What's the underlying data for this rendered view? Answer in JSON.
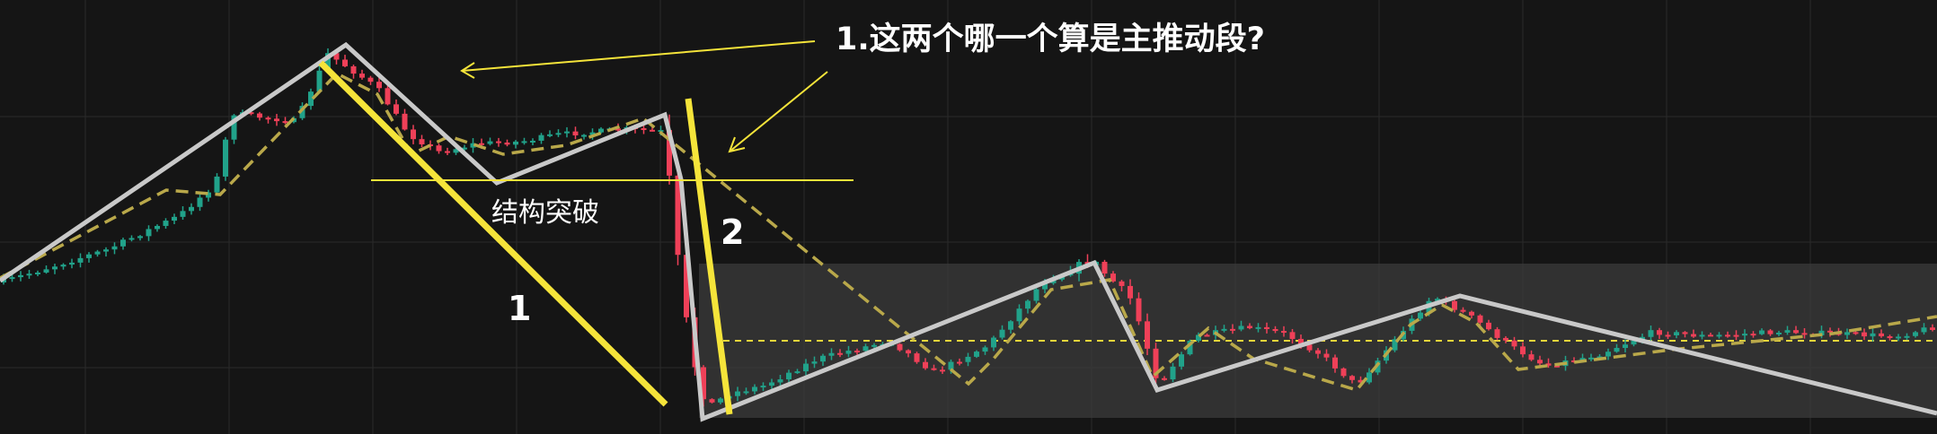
{
  "chart_data": {
    "type": "candlestick",
    "title": "",
    "xlabel": "",
    "ylabel": "",
    "grid": true,
    "colors": {
      "background": "#151515",
      "grid": "#2a2a2a",
      "up": "#21a28a",
      "down": "#ef4058",
      "zigzag": "#c9c9c9",
      "sub_zigzag": "#b9a84a",
      "highlight": "#f5e43a",
      "range_box": "#3b3b3b",
      "range_midline": "#e8d63a",
      "text": "#ffffff"
    },
    "annotations": {
      "question": "1.这两个哪一个算是主推动段?",
      "structure_break": "结构突破",
      "leg1": "1",
      "leg2": "2"
    }
  }
}
